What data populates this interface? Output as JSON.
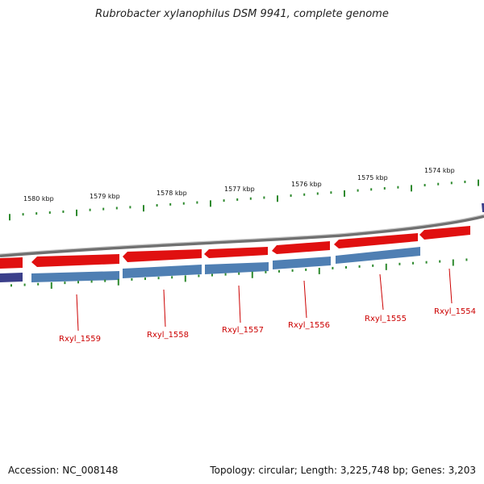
{
  "title": "Rubrobacter xylanophilus DSM 9941, complete genome",
  "footer": {
    "accession": "Accession: NC_008148",
    "summary": "Topology: circular; Length: 3,225,748 bp; Genes: 3,203"
  },
  "colors": {
    "forward_gene": "#e01010",
    "reverse_gene": "#4f7fb3",
    "backbone": "#8c8c8c",
    "tick": "#2f8a2f",
    "gene_label": "#cc0000",
    "partial_dark": "#3b3f8a"
  },
  "kbp_labels": [
    "1580 kbp",
    "1579 kbp",
    "1578 kbp",
    "1577 kbp",
    "1576 kbp",
    "1575 kbp",
    "1574 kbp"
  ],
  "gene_labels": [
    "Rxyl_1559",
    "Rxyl_1558",
    "Rxyl_1557",
    "Rxyl_1556",
    "Rxyl_1555",
    "Rxyl_1554"
  ]
}
